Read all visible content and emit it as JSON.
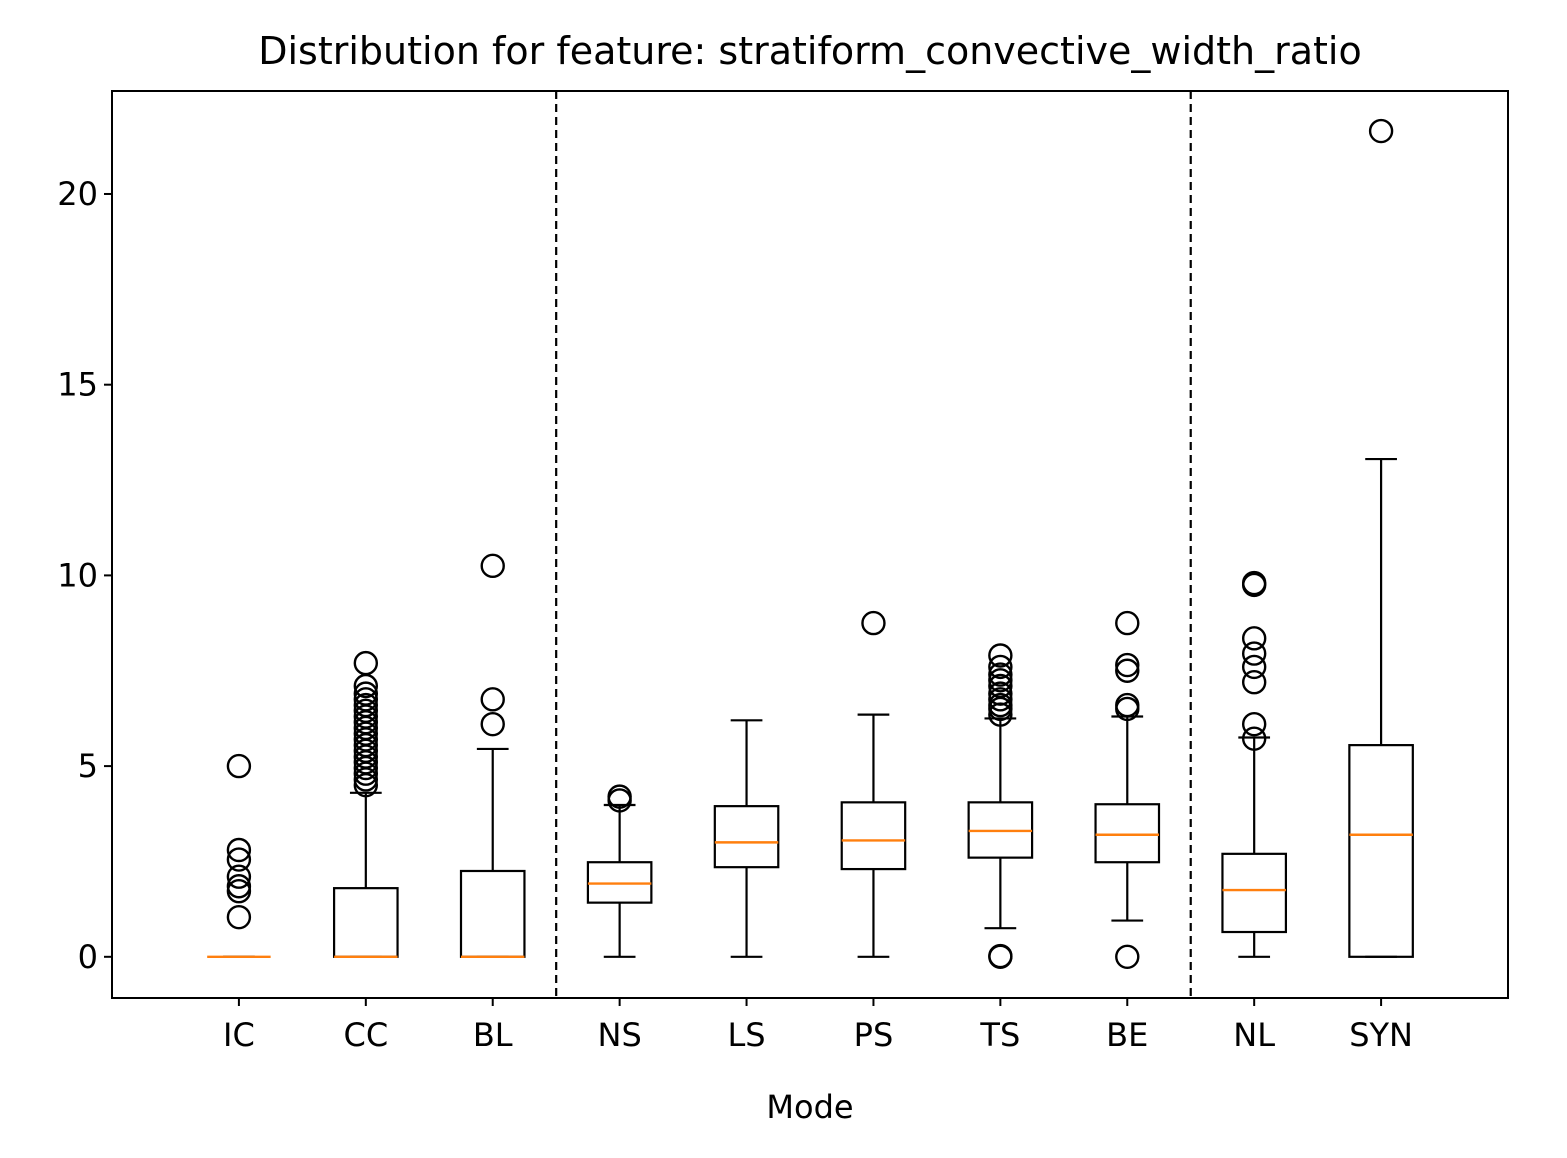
{
  "chart_data": {
    "type": "box",
    "title": "Distribution for feature: stratiform_convective_width_ratio",
    "xlabel": "Mode",
    "ylabel": "",
    "ylim": [
      -1.08,
      22.7
    ],
    "yticks": [
      0,
      5,
      10,
      15,
      20
    ],
    "grid": false,
    "legend": "none",
    "separators_after_index": [
      2,
      7
    ],
    "colors": {
      "box": "#000000",
      "median": "#ff7f0e",
      "separator": "#000000"
    },
    "categories": [
      "IC",
      "CC",
      "BL",
      "NS",
      "LS",
      "PS",
      "TS",
      "BE",
      "NL",
      "SYN"
    ],
    "boxes": [
      {
        "label": "IC",
        "whisker_low": 0,
        "q1": 0,
        "median": 0,
        "q3": 0,
        "whisker_high": 0,
        "outliers": [
          1.04,
          1.72,
          1.85,
          2.1,
          2.55,
          2.8,
          5.0
        ]
      },
      {
        "label": "CC",
        "whisker_low": 0,
        "q1": 0,
        "median": 0,
        "q3": 1.8,
        "whisker_high": 4.3,
        "outliers": [
          4.5,
          4.65,
          4.8,
          4.95,
          5.1,
          5.25,
          5.4,
          5.55,
          5.7,
          5.85,
          6.0,
          6.15,
          6.3,
          6.45,
          6.6,
          6.75,
          6.9,
          7.1,
          7.7
        ]
      },
      {
        "label": "BL",
        "whisker_low": 0,
        "q1": 0,
        "median": 0,
        "q3": 2.25,
        "whisker_high": 5.45,
        "outliers": [
          6.1,
          6.75,
          10.25
        ]
      },
      {
        "label": "NS",
        "whisker_low": 0,
        "q1": 1.42,
        "median": 1.92,
        "q3": 2.48,
        "whisker_high": 3.98,
        "outliers": [
          4.1,
          4.2
        ]
      },
      {
        "label": "LS",
        "whisker_low": 0,
        "q1": 2.35,
        "median": 3.0,
        "q3": 3.95,
        "whisker_high": 6.2,
        "outliers": []
      },
      {
        "label": "PS",
        "whisker_low": 0,
        "q1": 2.3,
        "median": 3.05,
        "q3": 4.05,
        "whisker_high": 6.35,
        "outliers": [
          8.75
        ]
      },
      {
        "label": "TS",
        "whisker_low": 0.75,
        "q1": 2.6,
        "median": 3.3,
        "q3": 4.05,
        "whisker_high": 6.25,
        "outliers": [
          0,
          0.02,
          6.35,
          6.5,
          6.6,
          6.75,
          6.9,
          7.1,
          7.25,
          7.4,
          7.6,
          7.9
        ]
      },
      {
        "label": "BE",
        "whisker_low": 0.95,
        "q1": 2.48,
        "median": 3.2,
        "q3": 4.0,
        "whisker_high": 6.3,
        "outliers": [
          0,
          6.5,
          6.6,
          7.5,
          7.65,
          8.75
        ]
      },
      {
        "label": "NL",
        "whisker_low": 0,
        "q1": 0.65,
        "median": 1.75,
        "q3": 2.7,
        "whisker_high": 5.75,
        "outliers": [
          5.72,
          6.1,
          7.2,
          7.6,
          7.95,
          8.35,
          9.75,
          9.8
        ]
      },
      {
        "label": "SYN",
        "whisker_low": 0,
        "q1": 0,
        "median": 3.2,
        "q3": 5.55,
        "whisker_high": 13.05,
        "outliers": [
          21.65
        ]
      }
    ]
  }
}
